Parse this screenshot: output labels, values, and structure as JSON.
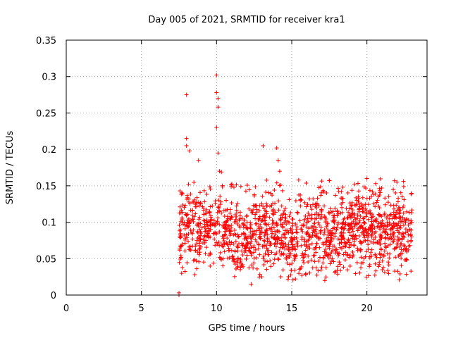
{
  "chart_data": {
    "type": "scatter",
    "title": "Day 005 of 2021, SRMTID for receiver kra1",
    "xlabel": "GPS time / hours",
    "ylabel": "SRMTID / TECUs",
    "xlim": [
      0,
      24
    ],
    "ylim": [
      0,
      0.35
    ],
    "xticks": [
      0,
      5,
      10,
      15,
      20
    ],
    "xtick_labels": [
      "0",
      "5",
      "10",
      "15",
      "20"
    ],
    "yticks": [
      0,
      0.05,
      0.1,
      0.15,
      0.2,
      0.25,
      0.3,
      0.35
    ],
    "ytick_labels": [
      "0",
      "0.05",
      "0.1",
      "0.15",
      "0.2",
      "0.25",
      "0.3",
      "0.35"
    ],
    "grid": true,
    "marker": "+",
    "color": "#ff0000",
    "x_start": 7.5,
    "x_end": 23.0,
    "baseline_y": 0.085,
    "noise_amplitude": 0.025,
    "series": [
      {
        "name": "SRMTID",
        "notable_points": [
          {
            "x": 7.5,
            "y": 0.0
          },
          {
            "x": 7.5,
            "y": 0.003
          },
          {
            "x": 8.0,
            "y": 0.275
          },
          {
            "x": 8.0,
            "y": 0.215
          },
          {
            "x": 8.0,
            "y": 0.205
          },
          {
            "x": 8.2,
            "y": 0.198
          },
          {
            "x": 8.8,
            "y": 0.185
          },
          {
            "x": 10.0,
            "y": 0.302
          },
          {
            "x": 10.0,
            "y": 0.278
          },
          {
            "x": 10.1,
            "y": 0.27
          },
          {
            "x": 10.1,
            "y": 0.258
          },
          {
            "x": 10.0,
            "y": 0.23
          },
          {
            "x": 10.1,
            "y": 0.195
          },
          {
            "x": 10.2,
            "y": 0.17
          },
          {
            "x": 13.1,
            "y": 0.205
          },
          {
            "x": 14.0,
            "y": 0.202
          },
          {
            "x": 14.1,
            "y": 0.185
          },
          {
            "x": 14.2,
            "y": 0.17
          },
          {
            "x": 12.3,
            "y": 0.015
          },
          {
            "x": 17.2,
            "y": 0.02
          },
          {
            "x": 18.3,
            "y": 0.142
          },
          {
            "x": 20.0,
            "y": 0.16
          },
          {
            "x": 22.0,
            "y": 0.155
          }
        ]
      }
    ]
  }
}
